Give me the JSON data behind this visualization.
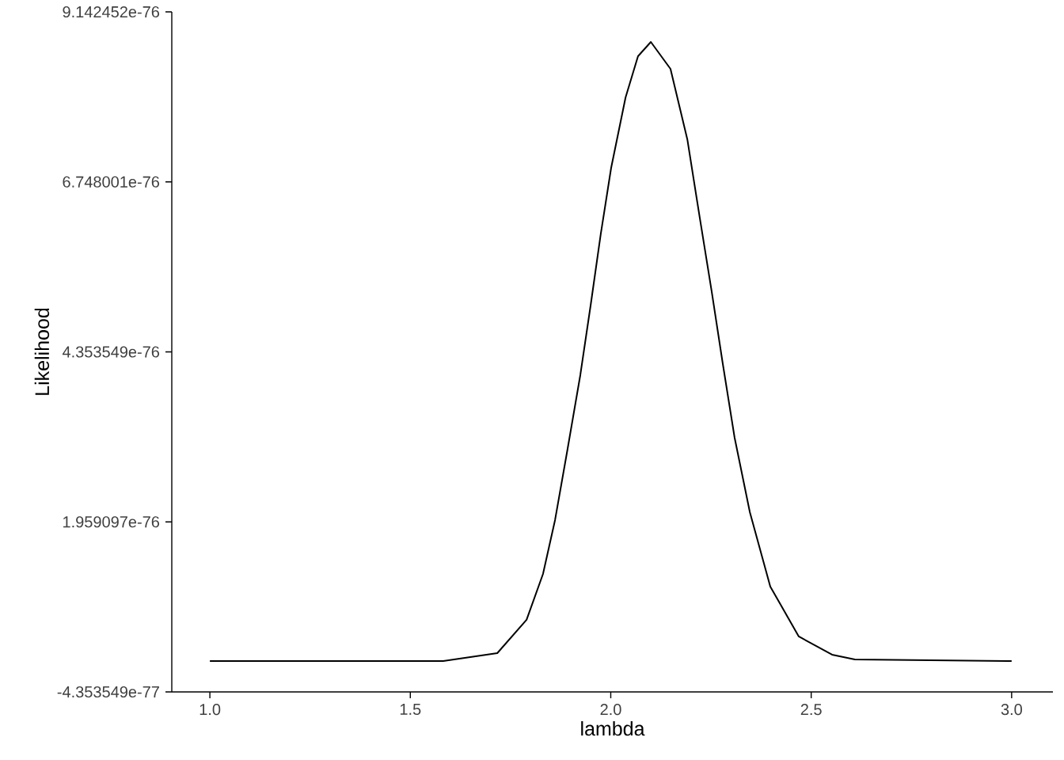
{
  "chart_data": {
    "type": "line",
    "xlabel": "lambda",
    "ylabel": "Likelihood",
    "color": "#000000",
    "line_style": "solid",
    "x": [
      1.0,
      1.4,
      1.582,
      1.717,
      1.79,
      1.831,
      1.861,
      1.892,
      1.924,
      1.95,
      1.975,
      2.001,
      2.037,
      2.068,
      2.1,
      2.149,
      2.191,
      2.222,
      2.252,
      2.279,
      2.309,
      2.347,
      2.398,
      2.469,
      2.552,
      2.609,
      3.0
    ],
    "values": [
      0,
      0,
      0,
      1.11e-77,
      5.8e-77,
      1.226e-76,
      1.985e-76,
      2.977e-76,
      4.025e-76,
      5.017e-76,
      6.01e-76,
      6.946e-76,
      7.939e-76,
      8.518e-76,
      8.719e-76,
      8.34e-76,
      7.348e-76,
      6.244e-76,
      5.196e-76,
      4.203e-76,
      3.144e-76,
      2.096e-76,
      1.048e-76,
      3.46e-77,
      8.9e-78,
      2.2e-78,
      0
    ],
    "xlim": [
      0.905,
      3.103
    ],
    "xticks": [
      {
        "value": 1,
        "label": "1.0"
      },
      1.5,
      {
        "value": 2,
        "label": "2.0"
      },
      2.5,
      {
        "value": 3,
        "label": "3.0"
      }
    ],
    "ylim": [
      -4.353549e-77,
      9.142452e-76
    ],
    "yticks": [
      {
        "value": -4.353549e-77,
        "label": "-4.353549e-77"
      },
      {
        "value": 1.959097e-76,
        "label": "1.959097e-76"
      },
      {
        "value": 4.353549e-76,
        "label": "4.353549e-76"
      },
      {
        "value": 6.748001e-76,
        "label": "6.748001e-76"
      },
      {
        "value": 9.142452e-76,
        "label": "9.142452e-76"
      }
    ]
  }
}
